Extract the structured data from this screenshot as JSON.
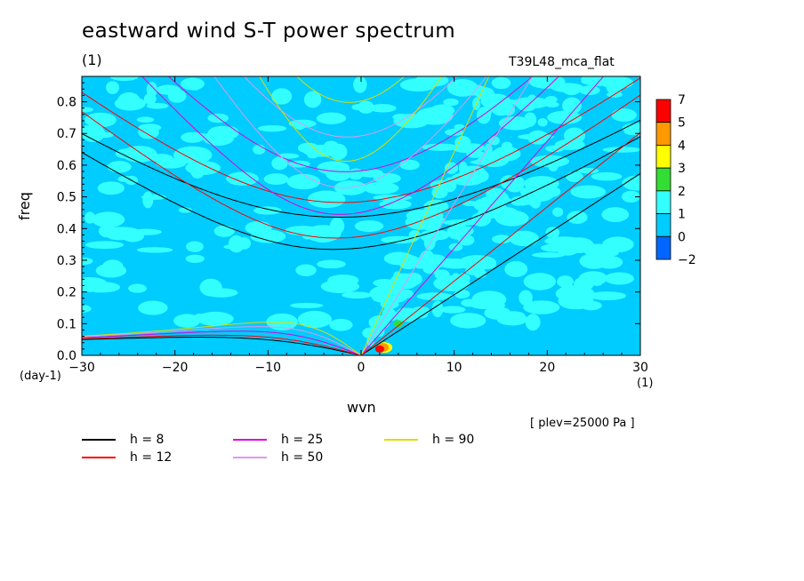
{
  "chart_data": {
    "type": "heatmap",
    "title": "eastward wind S-T power spectrum",
    "subtitle_left": "(1)",
    "subtitle_right": "T39L48_mca_flat",
    "xlabel": "wvn",
    "ylabel": "freq",
    "x_unit": "(1)",
    "y_unit": "(day-1)",
    "annotation": "[ plev=25000 Pa ]",
    "xlim": [
      -30,
      30
    ],
    "ylim": [
      0,
      0.88
    ],
    "x_ticks": [
      -30,
      -20,
      -10,
      0,
      10,
      20,
      30
    ],
    "y_ticks": [
      0.0,
      0.1,
      0.2,
      0.3,
      0.4,
      0.5,
      0.6,
      0.7,
      0.8
    ],
    "x_tick_labels": [
      "−30",
      "−20",
      "−10",
      "0",
      "10",
      "20",
      "30"
    ],
    "y_tick_labels": [
      "0.0",
      "0.1",
      "0.2",
      "0.3",
      "0.4",
      "0.5",
      "0.6",
      "0.7",
      "0.8"
    ],
    "colorbar": {
      "levels": [
        "7",
        "5",
        "4",
        "3",
        "2",
        "1",
        "0",
        "−2"
      ],
      "colors": [
        "#ff0000",
        "#ff9900",
        "#ffff00",
        "#33dd33",
        "#33ffff",
        "#00ccff",
        "#0066ff"
      ]
    },
    "background_color": "#00ccff",
    "dispersion_curves": [
      {
        "h": 8,
        "label": "h =  8",
        "color": "#000000"
      },
      {
        "h": 12,
        "label": "h = 12",
        "color": "#ff0000"
      },
      {
        "h": 25,
        "label": "h = 25",
        "color": "#dd00dd"
      },
      {
        "h": 50,
        "label": "h = 50",
        "color": "#dd99ee"
      },
      {
        "h": 90,
        "label": "h = 90",
        "color": "#dddd00"
      }
    ]
  }
}
